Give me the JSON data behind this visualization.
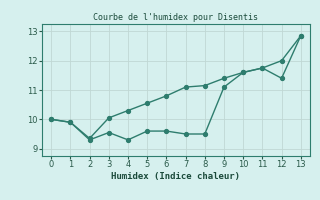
{
  "title": "Courbe de l'humidex pour Disentis",
  "xlabel": "Humidex (Indice chaleur)",
  "x": [
    0,
    1,
    2,
    3,
    4,
    5,
    6,
    7,
    8,
    9,
    10,
    11,
    12,
    13
  ],
  "line1": [
    10.0,
    9.9,
    9.3,
    9.55,
    9.3,
    9.6,
    9.6,
    9.5,
    9.5,
    11.1,
    11.6,
    11.75,
    11.4,
    12.85
  ],
  "line2": [
    10.0,
    9.9,
    9.35,
    10.05,
    10.3,
    10.55,
    10.8,
    11.1,
    11.15,
    11.4,
    11.6,
    11.75,
    12.0,
    12.85
  ],
  "line_color": "#2e7d6e",
  "bg_color": "#d6f0ee",
  "grid_color": "#c0d8d4",
  "ylim": [
    8.75,
    13.25
  ],
  "xlim": [
    -0.5,
    13.5
  ],
  "yticks": [
    9,
    10,
    11,
    12,
    13
  ],
  "xticks": [
    0,
    1,
    2,
    3,
    4,
    5,
    6,
    7,
    8,
    9,
    10,
    11,
    12,
    13
  ]
}
